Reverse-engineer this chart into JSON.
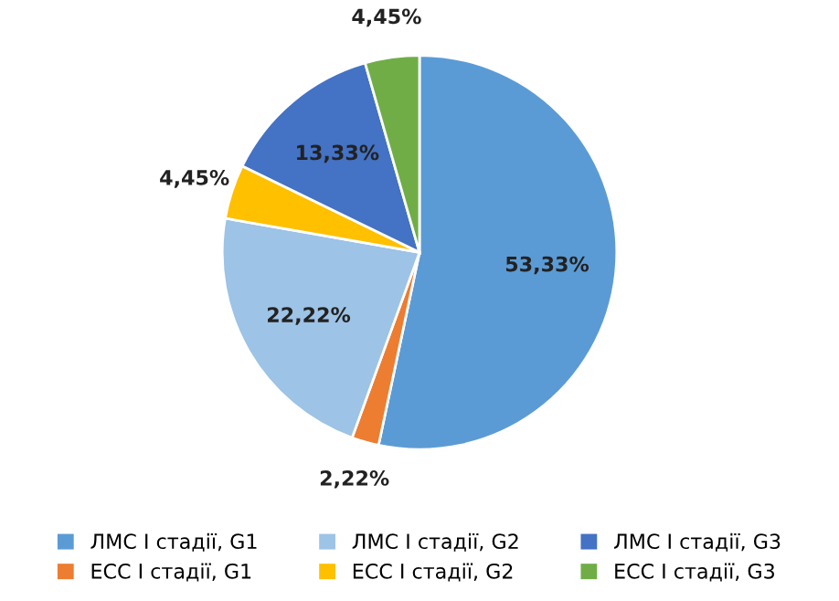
{
  "chart_data": {
    "type": "pie",
    "categories": [
      "ЛМС І стадії, G1",
      "ЕСС І стадії, G1",
      "ЛМС І стадії, G2",
      "ЕСС І стадії, G2",
      "ЛМС І стадії, G3",
      "ЕСС І стадії, G3"
    ],
    "values": [
      53.33,
      2.22,
      22.22,
      4.45,
      13.33,
      4.45
    ],
    "value_labels": [
      "53,33%",
      "2,22%",
      "22,22%",
      "4,45%",
      "13,33%",
      "4,45%"
    ],
    "colors": [
      "#5b9bd5",
      "#ed7d31",
      "#9dc3e6",
      "#ffc000",
      "#4472c4",
      "#70ad47"
    ],
    "legend": "bottom"
  }
}
